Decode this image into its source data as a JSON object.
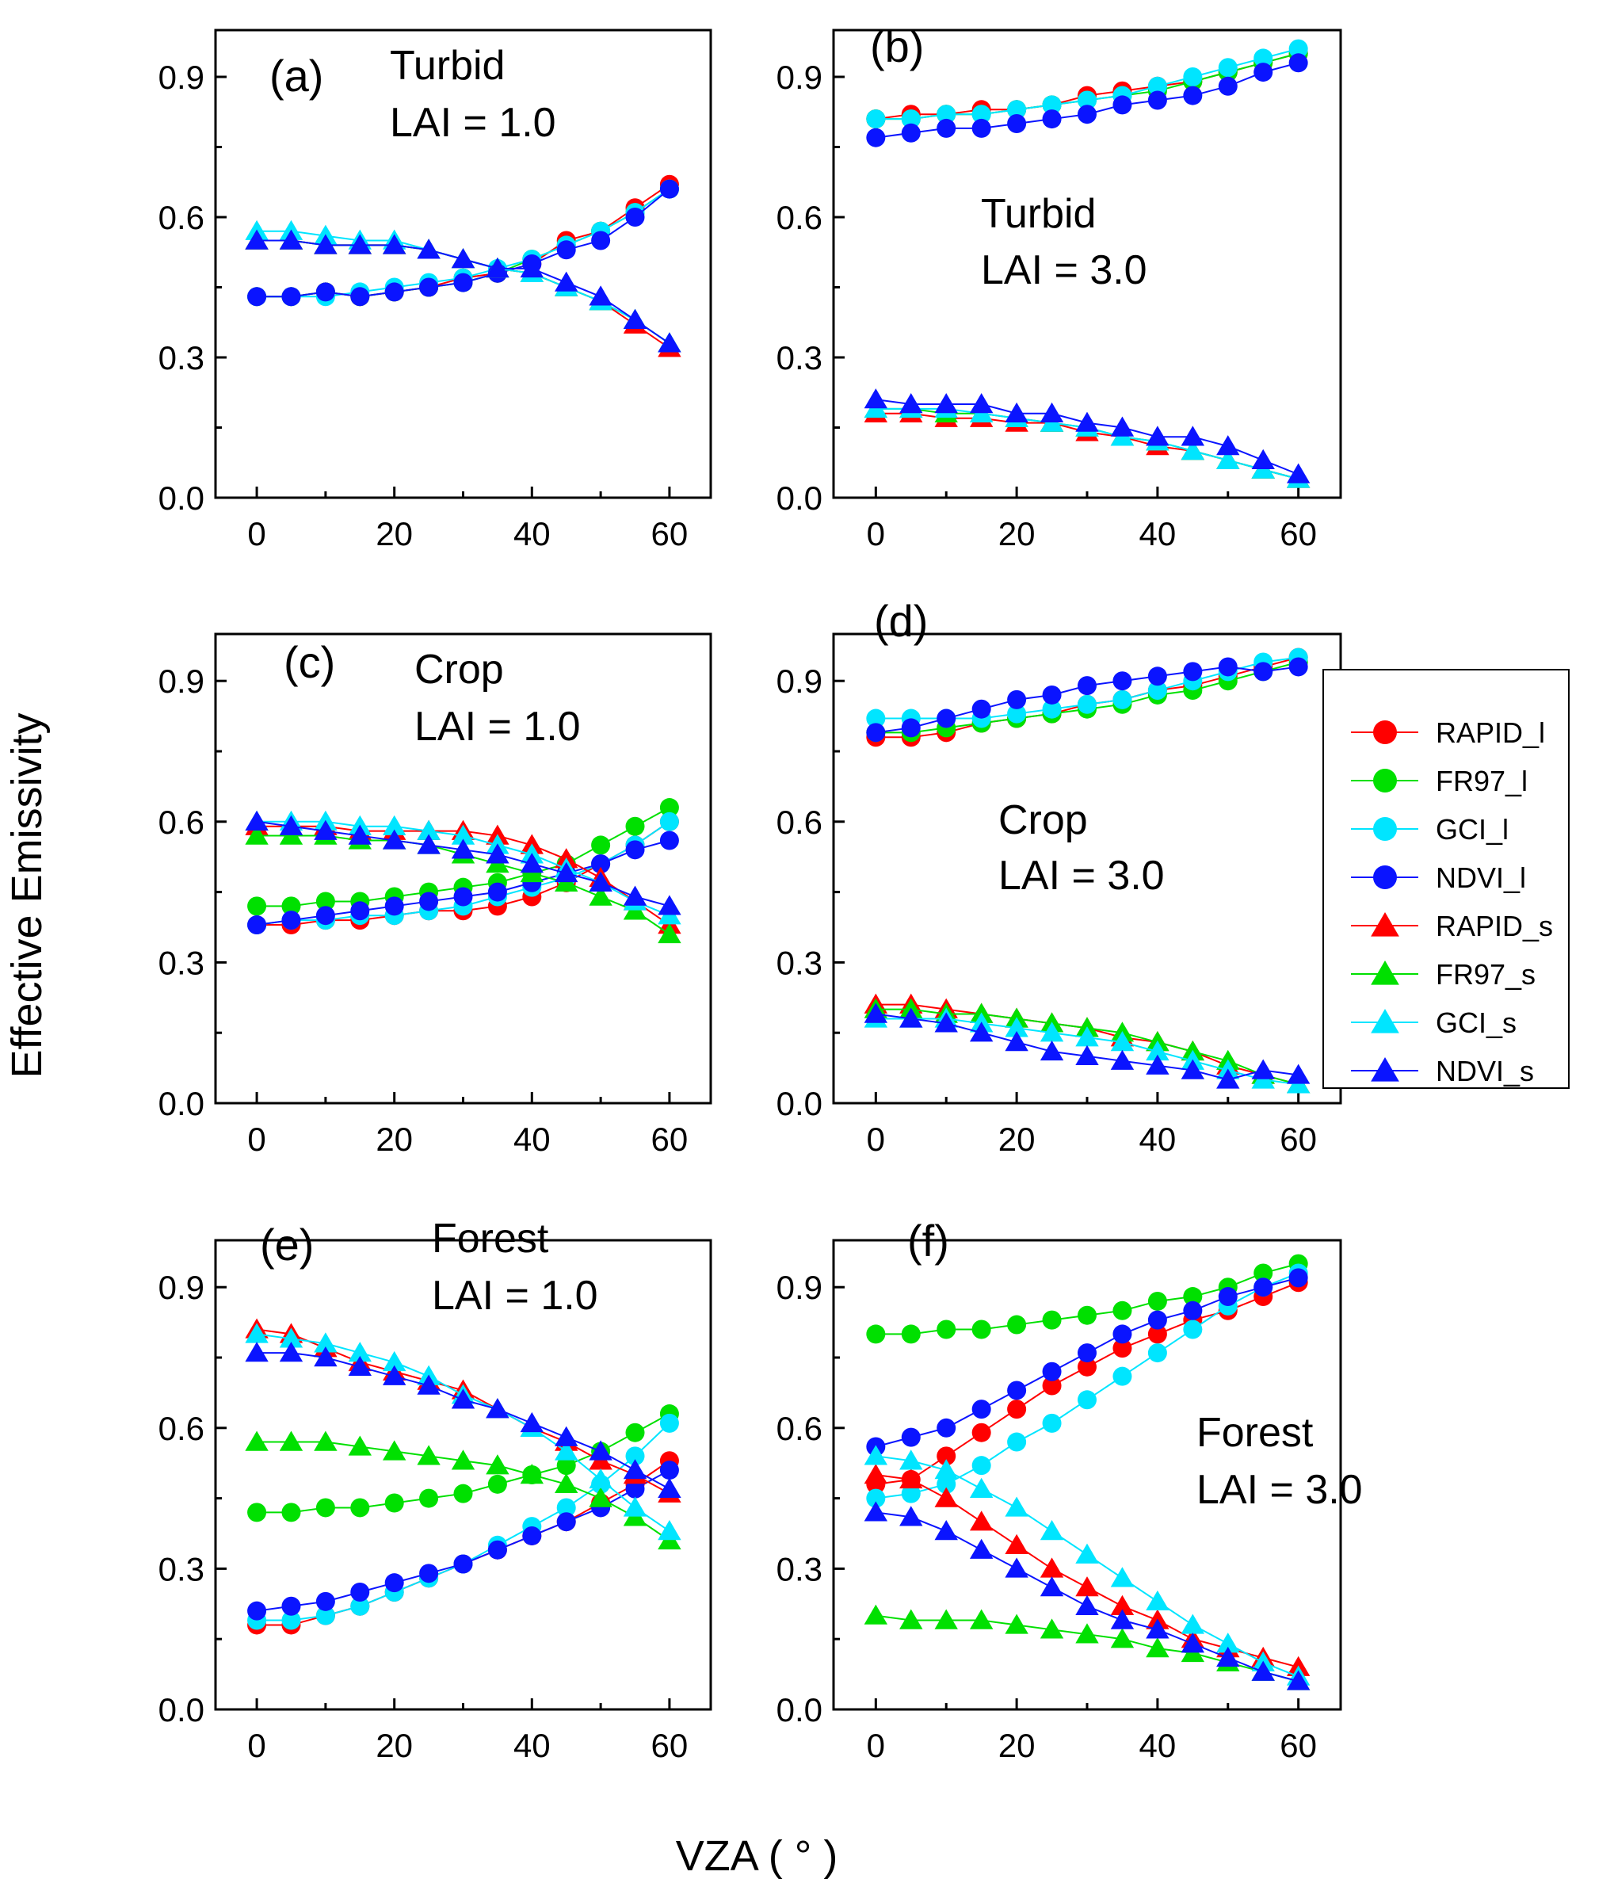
{
  "chart_data": {
    "type": "line",
    "ylabel": "Effective Emissivity",
    "xlabel": "VZA ( ° )",
    "x": [
      0,
      5,
      10,
      15,
      20,
      25,
      30,
      35,
      40,
      45,
      50,
      55,
      60
    ],
    "xlim": [
      -6,
      66
    ],
    "ylim": [
      0.0,
      1.0
    ],
    "xticks": [
      "0",
      "20",
      "40",
      "60"
    ],
    "yticks": [
      "0.0",
      "0.3",
      "0.6",
      "0.9"
    ],
    "series_styles": [
      {
        "name": "RAPID_l",
        "color": "#ff0000",
        "marker": "circle"
      },
      {
        "name": "FR97_l",
        "color": "#00e000",
        "marker": "circle"
      },
      {
        "name": "GCI_l",
        "color": "#00e5ff",
        "marker": "circle"
      },
      {
        "name": "NDVI_l",
        "color": "#0a14ff",
        "marker": "circle"
      },
      {
        "name": "RAPID_s",
        "color": "#ff0000",
        "marker": "triangle"
      },
      {
        "name": "FR97_s",
        "color": "#00e000",
        "marker": "triangle"
      },
      {
        "name": "GCI_s",
        "color": "#00e5ff",
        "marker": "triangle"
      },
      {
        "name": "NDVI_s",
        "color": "#0a14ff",
        "marker": "triangle"
      }
    ],
    "panels": [
      {
        "label": "(a)",
        "annotation_line1": "Turbid",
        "annotation_line2": "LAI = 1.0",
        "series": [
          {
            "name": "RAPID_l",
            "values": [
              0.43,
              0.43,
              0.44,
              0.43,
              0.44,
              0.45,
              0.47,
              0.48,
              0.5,
              0.55,
              0.57,
              0.62,
              0.67
            ]
          },
          {
            "name": "FR97_l",
            "values": [
              0.43,
              0.43,
              0.44,
              0.43,
              0.44,
              0.45,
              0.46,
              0.48,
              0.51,
              0.54,
              0.57,
              0.61,
              0.66
            ]
          },
          {
            "name": "GCI_l",
            "values": [
              0.43,
              0.43,
              0.43,
              0.44,
              0.45,
              0.46,
              0.47,
              0.49,
              0.51,
              0.54,
              0.57,
              0.61,
              0.66
            ]
          },
          {
            "name": "NDVI_l",
            "values": [
              0.43,
              0.43,
              0.44,
              0.43,
              0.44,
              0.45,
              0.46,
              0.48,
              0.5,
              0.53,
              0.55,
              0.6,
              0.66
            ]
          },
          {
            "name": "RAPID_s",
            "values": [
              0.55,
              0.55,
              0.54,
              0.54,
              0.54,
              0.53,
              0.51,
              0.49,
              0.48,
              0.45,
              0.42,
              0.37,
              0.32
            ]
          },
          {
            "name": "FR97_s",
            "values": [
              0.55,
              0.55,
              0.54,
              0.54,
              0.54,
              0.53,
              0.51,
              0.49,
              0.48,
              0.45,
              0.42,
              0.38,
              0.33
            ]
          },
          {
            "name": "GCI_s",
            "values": [
              0.57,
              0.57,
              0.56,
              0.55,
              0.55,
              0.53,
              0.51,
              0.49,
              0.48,
              0.45,
              0.42,
              0.38,
              0.33
            ]
          },
          {
            "name": "NDVI_s",
            "values": [
              0.55,
              0.55,
              0.54,
              0.54,
              0.54,
              0.53,
              0.51,
              0.49,
              0.49,
              0.46,
              0.43,
              0.38,
              0.33
            ]
          }
        ]
      },
      {
        "label": "(b)",
        "annotation_line1": "Turbid",
        "annotation_line2": "LAI = 3.0",
        "series": [
          {
            "name": "RAPID_l",
            "values": [
              0.81,
              0.82,
              0.82,
              0.83,
              0.83,
              0.84,
              0.86,
              0.87,
              0.88,
              0.89,
              0.91,
              0.93,
              0.95
            ]
          },
          {
            "name": "FR97_l",
            "values": [
              0.81,
              0.81,
              0.82,
              0.82,
              0.83,
              0.84,
              0.85,
              0.86,
              0.87,
              0.89,
              0.91,
              0.93,
              0.95
            ]
          },
          {
            "name": "GCI_l",
            "values": [
              0.81,
              0.81,
              0.82,
              0.82,
              0.83,
              0.84,
              0.85,
              0.86,
              0.88,
              0.9,
              0.92,
              0.94,
              0.96
            ]
          },
          {
            "name": "NDVI_l",
            "values": [
              0.77,
              0.78,
              0.79,
              0.79,
              0.8,
              0.81,
              0.82,
              0.84,
              0.85,
              0.86,
              0.88,
              0.91,
              0.93
            ]
          },
          {
            "name": "RAPID_s",
            "values": [
              0.18,
              0.18,
              0.17,
              0.17,
              0.16,
              0.16,
              0.14,
              0.13,
              0.11,
              0.1,
              0.08,
              0.06,
              0.04
            ]
          },
          {
            "name": "FR97_s",
            "values": [
              0.19,
              0.19,
              0.18,
              0.18,
              0.17,
              0.16,
              0.15,
              0.13,
              0.12,
              0.1,
              0.08,
              0.06,
              0.04
            ]
          },
          {
            "name": "GCI_s",
            "values": [
              0.19,
              0.19,
              0.19,
              0.18,
              0.17,
              0.16,
              0.15,
              0.13,
              0.12,
              0.1,
              0.08,
              0.06,
              0.04
            ]
          },
          {
            "name": "NDVI_s",
            "values": [
              0.21,
              0.2,
              0.2,
              0.2,
              0.18,
              0.18,
              0.16,
              0.15,
              0.13,
              0.13,
              0.11,
              0.08,
              0.05
            ]
          }
        ]
      },
      {
        "label": "(c)",
        "annotation_line1": "Crop",
        "annotation_line2": "LAI = 1.0",
        "series": [
          {
            "name": "RAPID_l",
            "values": [
              0.38,
              0.38,
              0.39,
              0.39,
              0.4,
              0.41,
              0.41,
              0.42,
              0.44,
              0.47,
              0.51,
              0.55,
              0.6
            ]
          },
          {
            "name": "FR97_l",
            "values": [
              0.42,
              0.42,
              0.43,
              0.43,
              0.44,
              0.45,
              0.46,
              0.47,
              0.49,
              0.51,
              0.55,
              0.59,
              0.63
            ]
          },
          {
            "name": "GCI_l",
            "values": [
              0.38,
              0.39,
              0.39,
              0.4,
              0.4,
              0.41,
              0.42,
              0.44,
              0.46,
              0.48,
              0.51,
              0.55,
              0.6
            ]
          },
          {
            "name": "NDVI_l",
            "values": [
              0.38,
              0.39,
              0.4,
              0.41,
              0.42,
              0.43,
              0.44,
              0.45,
              0.47,
              0.49,
              0.51,
              0.54,
              0.56
            ]
          },
          {
            "name": "RAPID_s",
            "values": [
              0.59,
              0.59,
              0.59,
              0.58,
              0.58,
              0.58,
              0.58,
              0.57,
              0.55,
              0.52,
              0.48,
              0.43,
              0.38
            ]
          },
          {
            "name": "FR97_s",
            "values": [
              0.57,
              0.57,
              0.57,
              0.56,
              0.56,
              0.55,
              0.53,
              0.51,
              0.49,
              0.47,
              0.44,
              0.41,
              0.36
            ]
          },
          {
            "name": "GCI_s",
            "values": [
              0.6,
              0.6,
              0.6,
              0.59,
              0.59,
              0.58,
              0.57,
              0.55,
              0.53,
              0.5,
              0.47,
              0.43,
              0.4
            ]
          },
          {
            "name": "NDVI_s",
            "values": [
              0.6,
              0.59,
              0.58,
              0.57,
              0.56,
              0.55,
              0.54,
              0.53,
              0.51,
              0.49,
              0.47,
              0.44,
              0.42
            ]
          }
        ]
      },
      {
        "label": "(d)",
        "annotation_line1": "Crop",
        "annotation_line2": "LAI = 3.0",
        "series": [
          {
            "name": "RAPID_l",
            "values": [
              0.78,
              0.78,
              0.79,
              0.81,
              0.82,
              0.83,
              0.85,
              0.86,
              0.88,
              0.89,
              0.91,
              0.93,
              0.95
            ]
          },
          {
            "name": "FR97_l",
            "values": [
              0.79,
              0.79,
              0.8,
              0.81,
              0.82,
              0.83,
              0.84,
              0.85,
              0.87,
              0.88,
              0.9,
              0.92,
              0.94
            ]
          },
          {
            "name": "GCI_l",
            "values": [
              0.82,
              0.82,
              0.82,
              0.82,
              0.83,
              0.84,
              0.85,
              0.86,
              0.88,
              0.9,
              0.92,
              0.94,
              0.95
            ]
          },
          {
            "name": "NDVI_l",
            "values": [
              0.79,
              0.8,
              0.82,
              0.84,
              0.86,
              0.87,
              0.89,
              0.9,
              0.91,
              0.92,
              0.93,
              0.92,
              0.93
            ]
          },
          {
            "name": "RAPID_s",
            "values": [
              0.21,
              0.21,
              0.2,
              0.19,
              0.18,
              0.17,
              0.16,
              0.14,
              0.13,
              0.11,
              0.08,
              0.06,
              0.04
            ]
          },
          {
            "name": "FR97_s",
            "values": [
              0.2,
              0.2,
              0.19,
              0.19,
              0.18,
              0.17,
              0.16,
              0.15,
              0.13,
              0.11,
              0.09,
              0.06,
              0.04
            ]
          },
          {
            "name": "GCI_s",
            "values": [
              0.18,
              0.18,
              0.18,
              0.17,
              0.16,
              0.15,
              0.14,
              0.13,
              0.11,
              0.09,
              0.07,
              0.05,
              0.04
            ]
          },
          {
            "name": "NDVI_s",
            "values": [
              0.19,
              0.18,
              0.17,
              0.15,
              0.13,
              0.11,
              0.1,
              0.09,
              0.08,
              0.07,
              0.05,
              0.07,
              0.06
            ]
          }
        ]
      },
      {
        "label": "(e)",
        "annotation_line1": "Forest",
        "annotation_line2": "LAI = 1.0",
        "series": [
          {
            "name": "RAPID_l",
            "values": [
              0.18,
              0.18,
              0.2,
              0.22,
              0.25,
              0.28,
              0.31,
              0.34,
              0.37,
              0.4,
              0.44,
              0.48,
              0.53
            ]
          },
          {
            "name": "FR97_l",
            "values": [
              0.42,
              0.42,
              0.43,
              0.43,
              0.44,
              0.45,
              0.46,
              0.48,
              0.5,
              0.52,
              0.55,
              0.59,
              0.63
            ]
          },
          {
            "name": "GCI_l",
            "values": [
              0.19,
              0.19,
              0.2,
              0.22,
              0.25,
              0.28,
              0.31,
              0.35,
              0.39,
              0.43,
              0.48,
              0.54,
              0.61
            ]
          },
          {
            "name": "NDVI_l",
            "values": [
              0.21,
              0.22,
              0.23,
              0.25,
              0.27,
              0.29,
              0.31,
              0.34,
              0.37,
              0.4,
              0.43,
              0.47,
              0.51
            ]
          },
          {
            "name": "RAPID_s",
            "values": [
              0.81,
              0.8,
              0.77,
              0.74,
              0.72,
              0.7,
              0.68,
              0.64,
              0.6,
              0.57,
              0.53,
              0.5,
              0.46
            ]
          },
          {
            "name": "FR97_s",
            "values": [
              0.57,
              0.57,
              0.57,
              0.56,
              0.55,
              0.54,
              0.53,
              0.52,
              0.5,
              0.48,
              0.45,
              0.41,
              0.36
            ]
          },
          {
            "name": "GCI_s",
            "values": [
              0.8,
              0.79,
              0.78,
              0.76,
              0.74,
              0.71,
              0.67,
              0.64,
              0.6,
              0.55,
              0.49,
              0.43,
              0.38
            ]
          },
          {
            "name": "NDVI_s",
            "values": [
              0.76,
              0.76,
              0.75,
              0.73,
              0.71,
              0.69,
              0.66,
              0.64,
              0.61,
              0.58,
              0.55,
              0.51,
              0.47
            ]
          }
        ]
      },
      {
        "label": "(f)",
        "annotation_line1": "Forest",
        "annotation_line2": "LAI = 3.0",
        "series": [
          {
            "name": "RAPID_l",
            "values": [
              0.48,
              0.49,
              0.54,
              0.59,
              0.64,
              0.69,
              0.73,
              0.77,
              0.8,
              0.83,
              0.85,
              0.88,
              0.91
            ]
          },
          {
            "name": "FR97_l",
            "values": [
              0.8,
              0.8,
              0.81,
              0.81,
              0.82,
              0.83,
              0.84,
              0.85,
              0.87,
              0.88,
              0.9,
              0.93,
              0.95
            ]
          },
          {
            "name": "GCI_l",
            "values": [
              0.45,
              0.46,
              0.48,
              0.52,
              0.57,
              0.61,
              0.66,
              0.71,
              0.76,
              0.81,
              0.86,
              0.9,
              0.93
            ]
          },
          {
            "name": "NDVI_l",
            "values": [
              0.56,
              0.58,
              0.6,
              0.64,
              0.68,
              0.72,
              0.76,
              0.8,
              0.83,
              0.85,
              0.88,
              0.9,
              0.92
            ]
          },
          {
            "name": "RAPID_s",
            "values": [
              0.5,
              0.49,
              0.45,
              0.4,
              0.35,
              0.3,
              0.26,
              0.22,
              0.19,
              0.15,
              0.13,
              0.11,
              0.09
            ]
          },
          {
            "name": "FR97_s",
            "values": [
              0.2,
              0.19,
              0.19,
              0.19,
              0.18,
              0.17,
              0.16,
              0.15,
              0.13,
              0.12,
              0.1,
              0.08,
              0.06
            ]
          },
          {
            "name": "GCI_s",
            "values": [
              0.54,
              0.53,
              0.51,
              0.47,
              0.43,
              0.38,
              0.33,
              0.28,
              0.23,
              0.18,
              0.14,
              0.1,
              0.07
            ]
          },
          {
            "name": "NDVI_s",
            "values": [
              0.42,
              0.41,
              0.38,
              0.34,
              0.3,
              0.26,
              0.22,
              0.19,
              0.17,
              0.14,
              0.11,
              0.08,
              0.06
            ]
          }
        ]
      }
    ]
  }
}
